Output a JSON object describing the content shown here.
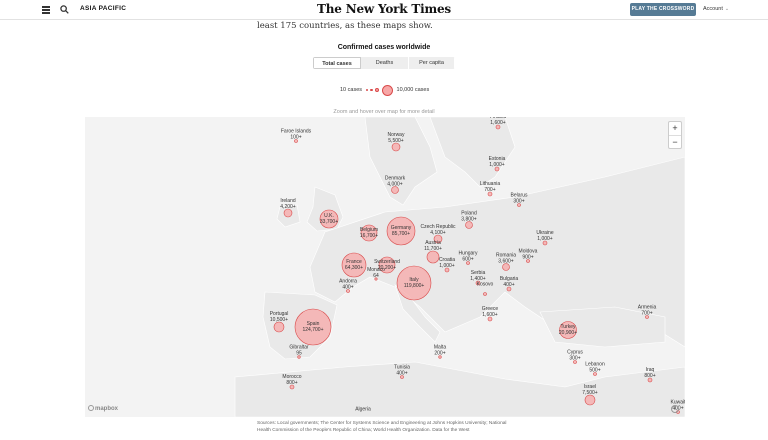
{
  "header": {
    "section": "ASIA PACIFIC",
    "masthead": "The New York Times",
    "crossword_button": "PLAY THE CROSSWORD",
    "account": "Account"
  },
  "article": {
    "intro": "least 175 countries, as these maps show."
  },
  "graphic": {
    "title": "Confirmed cases worldwide",
    "tabs": [
      "Total cases",
      "Deaths",
      "Per capita"
    ],
    "active_tab": "Total cases",
    "legend_min": "10 cases",
    "legend_max": "10,000 cases",
    "hint": "Zoom and hover over map for more detail",
    "attribution": "mapbox",
    "colors": {
      "bubble_fill": "#f7a7a7",
      "bubble_stroke": "#d94a4a",
      "land": "#e9e9e9",
      "water": "#f3f3f3"
    }
  },
  "map_points": [
    {
      "name": "Faroe Islands",
      "value": "100+"
    },
    {
      "name": "Norway",
      "value": "5,500+"
    },
    {
      "name": "Finland",
      "value": "1,600+"
    },
    {
      "name": "Estonia",
      "value": "1,000+"
    },
    {
      "name": "Denmark",
      "value": "4,000+"
    },
    {
      "name": "Lithuania",
      "value": "700+"
    },
    {
      "name": "Belarus",
      "value": "300+"
    },
    {
      "name": "Ireland",
      "value": "4,200+"
    },
    {
      "name": "U.K.",
      "value": "33,700+"
    },
    {
      "name": "Belgium",
      "value": "16,700+"
    },
    {
      "name": "Germany",
      "value": "85,700+"
    },
    {
      "name": "Poland",
      "value": "3,800+"
    },
    {
      "name": "Ukraine",
      "value": "1,000+"
    },
    {
      "name": "Czech Republic",
      "value": "4,100+"
    },
    {
      "name": "Austria",
      "value": "11,700+"
    },
    {
      "name": "Switzerland",
      "value": "20,200+"
    },
    {
      "name": "Hungary",
      "value": "600+"
    },
    {
      "name": "Moldova",
      "value": "900+"
    },
    {
      "name": "Croatia",
      "value": "1,000+"
    },
    {
      "name": "Romania",
      "value": "3,600+"
    },
    {
      "name": "France",
      "value": "64,300+"
    },
    {
      "name": "Serbia",
      "value": "1,400+"
    },
    {
      "name": "Italy",
      "value": "119,800+"
    },
    {
      "name": "Monaco",
      "value": "64"
    },
    {
      "name": "Kosovo",
      "value": ""
    },
    {
      "name": "Bulgaria",
      "value": "400+"
    },
    {
      "name": "Andorra",
      "value": "400+"
    },
    {
      "name": "Portugal",
      "value": "10,500+"
    },
    {
      "name": "Spain",
      "value": "124,700+"
    },
    {
      "name": "Greece",
      "value": "1,600+"
    },
    {
      "name": "Turkey",
      "value": "20,900+"
    },
    {
      "name": "Armenia",
      "value": "700+"
    },
    {
      "name": "Gibraltar",
      "value": "95"
    },
    {
      "name": "Malta",
      "value": "200+"
    },
    {
      "name": "Cyprus",
      "value": "300+"
    },
    {
      "name": "Lebanon",
      "value": "500+"
    },
    {
      "name": "Iraq",
      "value": "800+"
    },
    {
      "name": "Tunisia",
      "value": "400+"
    },
    {
      "name": "Morocco",
      "value": "800+"
    },
    {
      "name": "Israel",
      "value": "7,500+"
    },
    {
      "name": "Kuwait",
      "value": "400+"
    },
    {
      "name": "Algeria",
      "value": ""
    }
  ],
  "sources": "Sources: Local governments; The Center for Systems Science and Engineering at Johns Hopkins University; National Health Commission of the People's Republic of China; World Health Organization. Data for the West"
}
